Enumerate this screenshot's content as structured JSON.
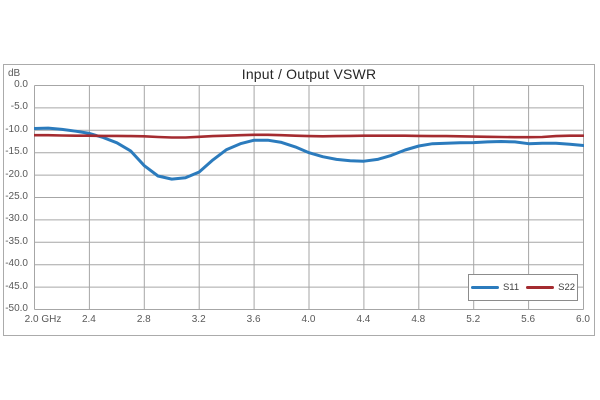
{
  "chart": {
    "grid_color": "#a6a6a6",
    "frame_color": "#ababab",
    "tick_text_color": "#595959",
    "title_text_color": "#262626"
  },
  "chart_data": {
    "type": "line",
    "title": "Input / Output VSWR",
    "xlabel": "",
    "ylabel": "dB",
    "xlim": [
      2.0,
      6.0
    ],
    "ylim": [
      -50,
      0
    ],
    "grid": true,
    "legend_position": "inside-bottom-right",
    "x_ticks": [
      "2.0 GHz",
      "2.4",
      "2.8",
      "3.2",
      "3.6",
      "4.0",
      "4.4",
      "4.8",
      "5.2",
      "5.6",
      "6.0"
    ],
    "y_ticks": [
      "0.0",
      "-5.0",
      "-10.0",
      "-15.0",
      "-20.0",
      "-25.0",
      "-30.0",
      "-35.0",
      "-40.0",
      "-45.0",
      "-50.0"
    ],
    "x": [
      2.0,
      2.1,
      2.2,
      2.3,
      2.4,
      2.5,
      2.6,
      2.7,
      2.8,
      2.9,
      3.0,
      3.1,
      3.2,
      3.3,
      3.4,
      3.5,
      3.6,
      3.7,
      3.8,
      3.9,
      4.0,
      4.1,
      4.2,
      4.3,
      4.4,
      4.5,
      4.6,
      4.7,
      4.8,
      4.9,
      5.0,
      5.1,
      5.2,
      5.3,
      5.4,
      5.5,
      5.6,
      5.7,
      5.8,
      5.9,
      6.0
    ],
    "series": [
      {
        "name": "S11",
        "color": "#2b7bbd",
        "stroke_width": 3,
        "values": [
          -9.6,
          -9.5,
          -9.8,
          -10.2,
          -10.7,
          -11.6,
          -12.8,
          -14.6,
          -17.9,
          -20.2,
          -20.9,
          -20.6,
          -19.3,
          -16.6,
          -14.3,
          -13.0,
          -12.2,
          -12.2,
          -12.7,
          -13.7,
          -15.0,
          -15.9,
          -16.5,
          -16.8,
          -16.9,
          -16.5,
          -15.6,
          -14.4,
          -13.5,
          -13.0,
          -12.9,
          -12.8,
          -12.75,
          -12.6,
          -12.5,
          -12.6,
          -13.0,
          -12.9,
          -12.9,
          -13.1,
          -13.4
        ]
      },
      {
        "name": "S22",
        "color": "#a42b30",
        "stroke_width": 2.6,
        "values": [
          -11.1,
          -11.1,
          -11.15,
          -11.2,
          -11.2,
          -11.25,
          -11.25,
          -11.3,
          -11.35,
          -11.5,
          -11.6,
          -11.6,
          -11.45,
          -11.3,
          -11.2,
          -11.1,
          -11.0,
          -11.0,
          -11.1,
          -11.2,
          -11.3,
          -11.35,
          -11.3,
          -11.25,
          -11.2,
          -11.2,
          -11.2,
          -11.2,
          -11.25,
          -11.3,
          -11.3,
          -11.35,
          -11.4,
          -11.45,
          -11.5,
          -11.55,
          -11.55,
          -11.5,
          -11.3,
          -11.2,
          -11.2
        ]
      }
    ]
  }
}
